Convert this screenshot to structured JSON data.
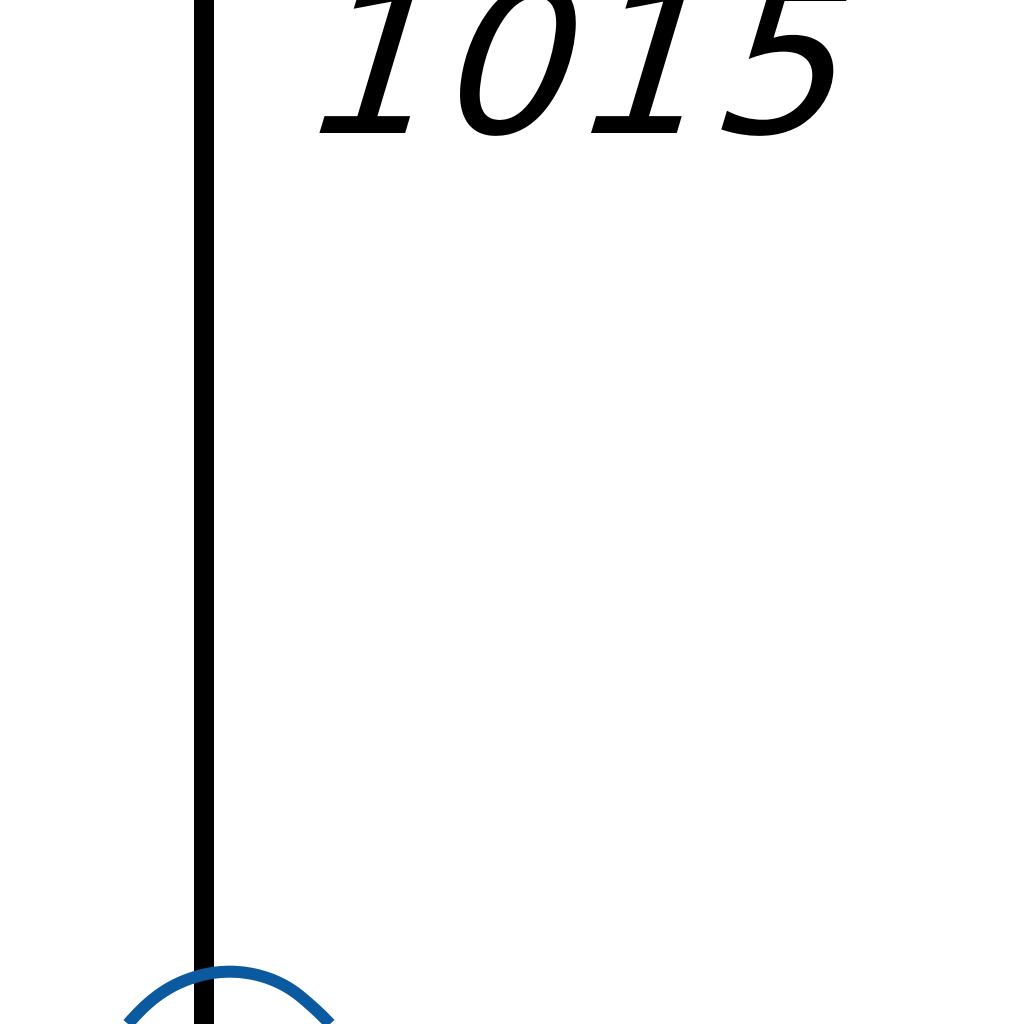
{
  "label": {
    "value": "1015"
  },
  "colors": {
    "background": "#ffffff",
    "line": "#000000",
    "arc": "#0b5aa0"
  }
}
